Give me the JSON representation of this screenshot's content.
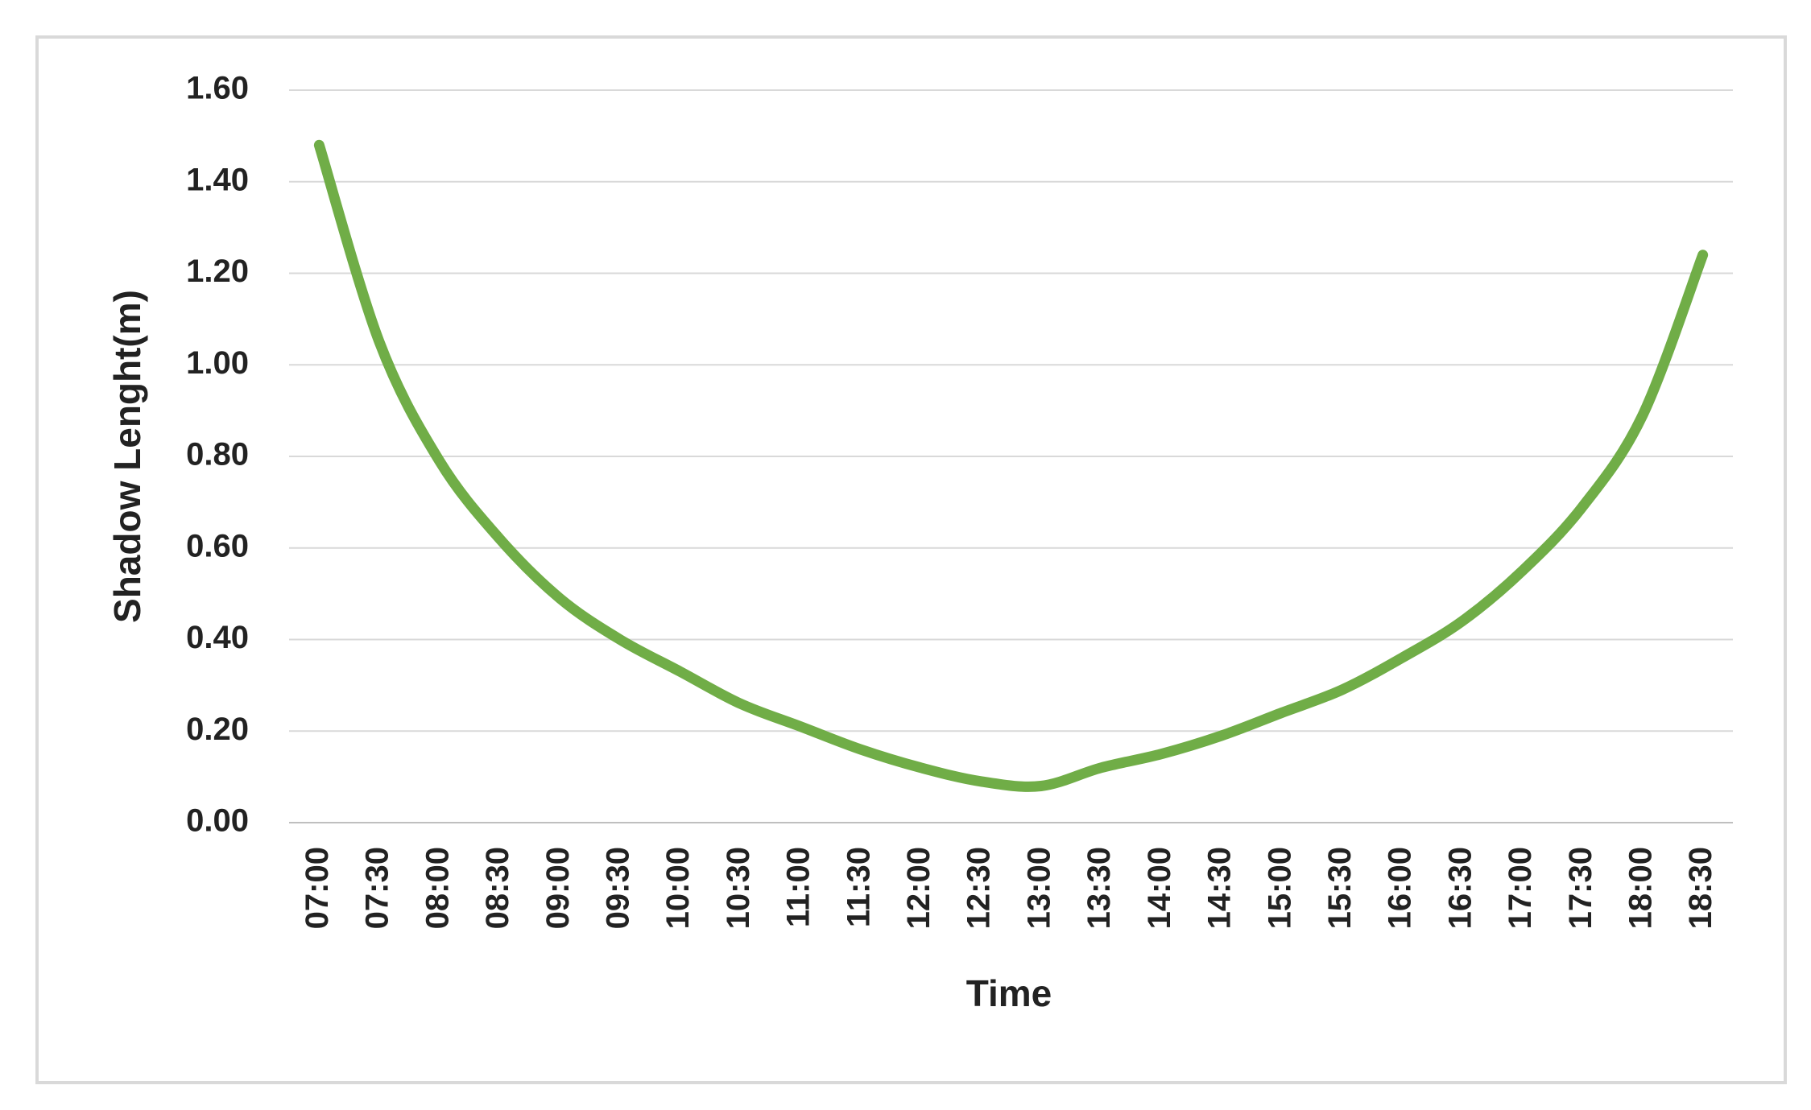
{
  "chart_data": {
    "type": "line",
    "x_label": "Time",
    "y_label": "Shadow Lenght(m)",
    "categories": [
      "07:00",
      "07:30",
      "08:00",
      "08:30",
      "09:00",
      "09:30",
      "10:00",
      "10:30",
      "11:00",
      "11:30",
      "12:00",
      "12:30",
      "13:00",
      "13:30",
      "14:00",
      "14:30",
      "15:00",
      "15:30",
      "16:00",
      "16:30",
      "17:00",
      "17:30",
      "18:00",
      "18:30"
    ],
    "values": [
      1.48,
      1.05,
      0.79,
      0.62,
      0.49,
      0.4,
      0.33,
      0.26,
      0.21,
      0.16,
      0.12,
      0.09,
      0.08,
      0.12,
      0.15,
      0.19,
      0.24,
      0.29,
      0.36,
      0.44,
      0.55,
      0.69,
      0.89,
      1.24
    ],
    "color": "#70ad47",
    "ylim": [
      0,
      1.6
    ],
    "yticks": [
      {
        "value": 0,
        "label": "0.00"
      },
      {
        "value": 0.2,
        "label": "0.20"
      },
      {
        "value": 0.4,
        "label": "0.40"
      },
      {
        "value": 0.6,
        "label": "0.60"
      },
      {
        "value": 0.8,
        "label": "0.80"
      },
      {
        "value": 1,
        "label": "1.00"
      },
      {
        "value": 1.2,
        "label": "1.20"
      },
      {
        "value": 1.4,
        "label": "1.40"
      },
      {
        "value": 1.6,
        "label": "1.60"
      }
    ],
    "grid": true
  }
}
